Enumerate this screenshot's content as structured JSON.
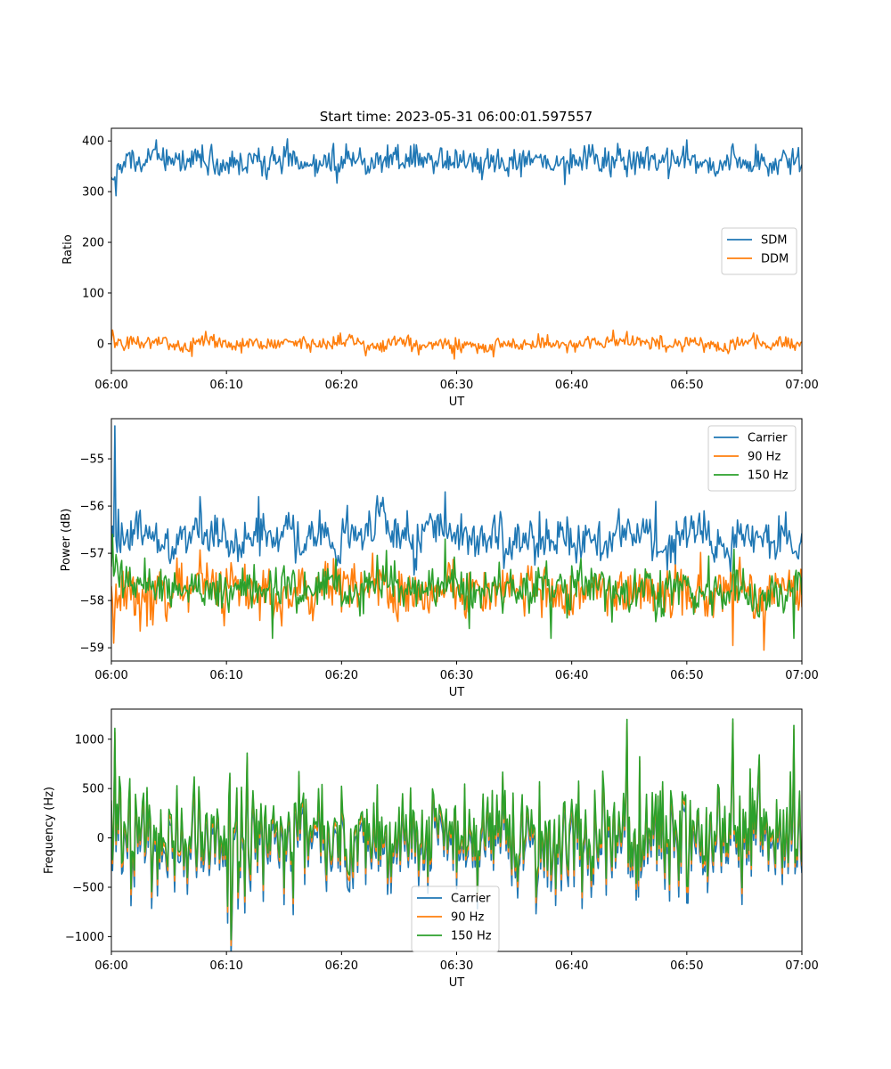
{
  "figure_title": "Start time: 2023-05-31 06:00:01.597557",
  "chart_data": [
    {
      "type": "line",
      "xlabel": "UT",
      "ylabel": "Ratio",
      "xlim": [
        "06:00",
        "07:00"
      ],
      "xticks": [
        "06:00",
        "06:10",
        "06:20",
        "06:30",
        "06:40",
        "06:50",
        "07:00"
      ],
      "ylim": [
        -53,
        425
      ],
      "yticks": [
        0,
        100,
        200,
        300,
        400
      ],
      "ytick_labels": [
        "0",
        "100",
        "200",
        "300",
        "400"
      ],
      "legend_position": "center-right",
      "points_per_minute": 10,
      "series": [
        {
          "name": "SDM",
          "color": "#1f77b4",
          "values_per_minute": [
            345,
            360,
            358,
            368,
            365,
            355,
            358,
            370,
            360,
            355,
            362,
            358,
            368,
            355,
            360,
            372,
            362,
            358,
            360,
            352,
            365,
            358,
            350,
            360,
            365,
            362,
            358,
            366,
            360,
            355,
            357,
            362,
            352,
            360,
            356,
            358,
            365,
            360,
            352,
            358,
            362,
            368,
            360,
            355,
            357,
            360,
            366,
            362,
            355,
            358,
            368,
            360,
            352,
            358,
            362,
            355,
            357,
            352,
            360,
            358
          ],
          "peaks": [
            {
              "minute": 0.4,
              "value": 292
            },
            {
              "minute": 15.3,
              "value": 404
            },
            {
              "minute": 50.0,
              "value": 402
            },
            {
              "minute": 44.0,
              "value": 395
            },
            {
              "minute": 8.7,
              "value": 393
            },
            {
              "minute": 26.0,
              "value": 390
            }
          ]
        },
        {
          "name": "DDM",
          "color": "#ff7f0e",
          "values_per_minute": [
            5,
            2,
            0,
            4,
            5,
            -2,
            -8,
            6,
            8,
            2,
            -1,
            -4,
            6,
            0,
            -3,
            5,
            2,
            -3,
            -1,
            4,
            8,
            2,
            -8,
            -6,
            3,
            5,
            -3,
            1,
            2,
            -2,
            -5,
            -3,
            -4,
            0,
            2,
            -4,
            -1,
            5,
            1,
            -2,
            0,
            4,
            1,
            8,
            10,
            3,
            0,
            2,
            -4,
            -2,
            4,
            1,
            -3,
            -6,
            2,
            5,
            1,
            -3,
            3,
            0
          ],
          "peaks": [
            {
              "minute": 0.1,
              "value": 27
            },
            {
              "minute": 7.0,
              "value": -25
            },
            {
              "minute": 29.8,
              "value": -30
            },
            {
              "minute": 33.2,
              "value": -26
            },
            {
              "minute": 44.8,
              "value": 24
            },
            {
              "minute": 19.9,
              "value": 21
            }
          ]
        }
      ]
    },
    {
      "type": "line",
      "xlabel": "UT",
      "ylabel": "Power (dB)",
      "xlim": [
        "06:00",
        "07:00"
      ],
      "xticks": [
        "06:00",
        "06:10",
        "06:20",
        "06:30",
        "06:40",
        "06:50",
        "07:00"
      ],
      "ylim": [
        -59.28,
        -54.15
      ],
      "yticks": [
        -59,
        -58,
        -57,
        -56,
        -55
      ],
      "ytick_labels": [
        "−59",
        "−58",
        "−57",
        "−56",
        "−55"
      ],
      "legend_position": "top-right",
      "points_per_minute": 10,
      "series": [
        {
          "name": "Carrier",
          "color": "#1f77b4",
          "values_per_minute": [
            -56.7,
            -56.6,
            -56.5,
            -56.6,
            -56.7,
            -56.9,
            -56.6,
            -56.6,
            -56.7,
            -56.5,
            -56.8,
            -56.9,
            -56.6,
            -56.5,
            -56.7,
            -56.4,
            -56.8,
            -56.7,
            -56.6,
            -56.9,
            -56.5,
            -56.6,
            -56.6,
            -56.3,
            -56.6,
            -56.6,
            -56.9,
            -56.4,
            -56.7,
            -56.5,
            -56.6,
            -56.8,
            -56.7,
            -56.6,
            -56.9,
            -56.7,
            -56.7,
            -56.7,
            -56.7,
            -56.5,
            -56.9,
            -56.6,
            -56.8,
            -56.7,
            -56.5,
            -56.6,
            -56.6,
            -56.8,
            -56.9,
            -56.6,
            -56.7,
            -56.5,
            -56.8,
            -56.9,
            -56.5,
            -56.7,
            -56.6,
            -56.8,
            -56.6,
            -56.8
          ],
          "peaks": [
            {
              "minute": 0.3,
              "value": -54.3
            },
            {
              "minute": 29.0,
              "value": -55.7
            },
            {
              "minute": 12.8,
              "value": -55.8
            },
            {
              "minute": 7.7,
              "value": -55.8
            },
            {
              "minute": 47.3,
              "value": -55.9
            },
            {
              "minute": 49.0,
              "value": -57.3
            }
          ]
        },
        {
          "name": "90 Hz",
          "color": "#ff7f0e",
          "values_per_minute": [
            -57.8,
            -57.7,
            -58.0,
            -57.9,
            -57.8,
            -57.6,
            -57.8,
            -57.6,
            -57.7,
            -57.9,
            -57.6,
            -57.7,
            -57.9,
            -57.6,
            -58.1,
            -57.9,
            -57.7,
            -57.8,
            -57.7,
            -57.6,
            -57.6,
            -57.8,
            -57.7,
            -57.5,
            -57.9,
            -57.7,
            -57.8,
            -57.8,
            -57.7,
            -57.8,
            -57.9,
            -57.6,
            -57.9,
            -57.8,
            -57.7,
            -57.9,
            -57.8,
            -57.7,
            -57.8,
            -57.8,
            -57.9,
            -57.8,
            -57.8,
            -57.9,
            -57.7,
            -57.8,
            -57.7,
            -57.8,
            -58.0,
            -57.6,
            -57.9,
            -57.8,
            -57.7,
            -57.8,
            -57.6,
            -57.8,
            -58.0,
            -57.8,
            -57.6,
            -57.7
          ],
          "peaks": [
            {
              "minute": 0.2,
              "value": -58.9
            },
            {
              "minute": 56.7,
              "value": -59.05
            },
            {
              "minute": 54.0,
              "value": -58.95
            },
            {
              "minute": 22.7,
              "value": -57.0
            },
            {
              "minute": 29.3,
              "value": -57.2
            }
          ]
        },
        {
          "name": "150 Hz",
          "color": "#2ca02c",
          "values_per_minute": [
            -57.3,
            -57.7,
            -57.6,
            -57.7,
            -57.7,
            -57.8,
            -57.8,
            -57.7,
            -57.8,
            -57.8,
            -57.9,
            -57.8,
            -57.7,
            -57.8,
            -57.8,
            -57.6,
            -57.9,
            -57.8,
            -57.6,
            -57.7,
            -58.0,
            -57.8,
            -57.7,
            -57.5,
            -57.6,
            -57.8,
            -57.9,
            -57.7,
            -57.8,
            -57.6,
            -57.8,
            -57.9,
            -57.8,
            -57.7,
            -57.8,
            -57.7,
            -57.8,
            -57.6,
            -57.8,
            -57.9,
            -57.6,
            -57.8,
            -57.7,
            -57.9,
            -57.8,
            -57.8,
            -57.7,
            -57.9,
            -57.7,
            -57.7,
            -57.8,
            -57.7,
            -57.9,
            -57.8,
            -57.6,
            -57.9,
            -58.0,
            -57.8,
            -57.9,
            -57.7
          ],
          "peaks": [
            {
              "minute": 0.1,
              "value": -56.6
            },
            {
              "minute": 59.3,
              "value": -58.8
            },
            {
              "minute": 38.2,
              "value": -58.8
            },
            {
              "minute": 14.0,
              "value": -58.8
            },
            {
              "minute": 29.0,
              "value": -56.7
            }
          ]
        }
      ]
    },
    {
      "type": "line",
      "xlabel": "UT",
      "ylabel": "Frequency (Hz)",
      "xlim": [
        "06:00",
        "07:00"
      ],
      "xticks": [
        "06:00",
        "06:10",
        "06:20",
        "06:30",
        "06:40",
        "06:50",
        "07:00"
      ],
      "ylim": [
        -1150,
        1305
      ],
      "yticks": [
        -1000,
        -500,
        0,
        500,
        1000
      ],
      "ytick_labels": [
        "−1000",
        "−500",
        "0",
        "500",
        "1000"
      ],
      "legend_position": "bottom-center",
      "points_per_minute": 10,
      "series": [
        {
          "name": "Carrier",
          "color": "#1f77b4",
          "offset": -110,
          "dip_extra": -60
        },
        {
          "name": "90 Hz",
          "color": "#ff7f0e",
          "offset": -40,
          "dip_extra": -20
        },
        {
          "name": "150 Hz",
          "color": "#2ca02c",
          "offset": 0,
          "dip_extra": 0,
          "amplitude_per_minute": [
            650,
            450,
            480,
            420,
            480,
            520,
            430,
            450,
            420,
            460,
            600,
            650,
            520,
            460,
            420,
            560,
            500,
            450,
            420,
            480,
            500,
            450,
            450,
            420,
            460,
            600,
            480,
            480,
            430,
            420,
            480,
            480,
            500,
            450,
            420,
            480,
            520,
            500,
            500,
            470,
            560,
            600,
            520,
            500,
            560,
            600,
            500,
            480,
            480,
            520,
            600,
            520,
            480,
            500,
            600,
            580,
            520,
            470,
            500,
            600
          ],
          "peaks": [
            {
              "minute": 0.3,
              "value": 1110
            },
            {
              "minute": 54.0,
              "value": 1205
            },
            {
              "minute": 44.8,
              "value": 1200
            },
            {
              "minute": 10.4,
              "value": -1030
            },
            {
              "minute": 11.8,
              "value": 860
            },
            {
              "minute": 59.3,
              "value": 1140
            }
          ]
        }
      ]
    }
  ]
}
